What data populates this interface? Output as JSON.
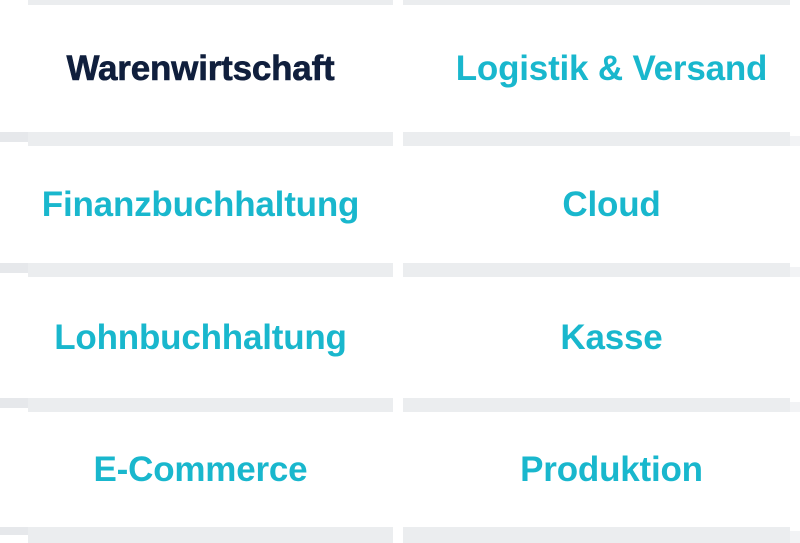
{
  "colors": {
    "active": "#101f3d",
    "inactive": "#19b7cd",
    "separator": "#ebedef",
    "separator-light": "#eef0f2",
    "edge-dark": "#e6e8eb",
    "edge-faint": "#f2f3f5",
    "bg": "#ffffff"
  },
  "tabs": [
    {
      "label": "Warenwirtschaft",
      "active": true
    },
    {
      "label": "Logistik & Versand",
      "active": false
    },
    {
      "label": "Finanzbuchhaltung",
      "active": false
    },
    {
      "label": "Cloud",
      "active": false
    },
    {
      "label": "Lohnbuchhaltung",
      "active": false
    },
    {
      "label": "Kasse",
      "active": false
    },
    {
      "label": "E-Commerce",
      "active": false
    },
    {
      "label": "Produktion",
      "active": false
    }
  ]
}
